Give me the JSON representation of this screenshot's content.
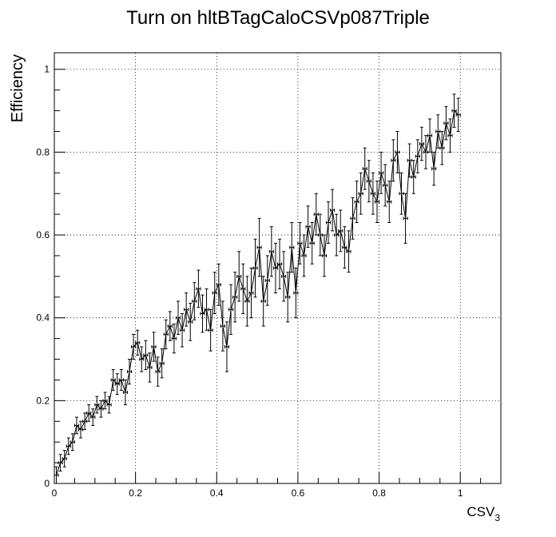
{
  "chart_data": {
    "type": "line",
    "title": "Turn on hltBTagCaloCSVp087Triple",
    "ylabel": "Efficiency",
    "xlabel_main": "CSV",
    "xlabel_sub": "3",
    "xlim": [
      0,
      1.1
    ],
    "ylim": [
      0,
      1.04
    ],
    "grid": true,
    "xticks": [
      "0",
      "0.2",
      "0.4",
      "0.6",
      "0.8",
      "1"
    ],
    "xtick_values": [
      0,
      0.2,
      0.4,
      0.6,
      0.8,
      1.0
    ],
    "yticks": [
      "0",
      "0.2",
      "0.4",
      "0.6",
      "0.8",
      "1"
    ],
    "ytick_values": [
      0,
      0.2,
      0.4,
      0.6,
      0.8,
      1.0
    ],
    "series": [
      {
        "x_bin_width": 0.01,
        "x": [
          0.005,
          0.015,
          0.025,
          0.035,
          0.045,
          0.055,
          0.065,
          0.075,
          0.085,
          0.095,
          0.105,
          0.115,
          0.125,
          0.135,
          0.145,
          0.155,
          0.165,
          0.175,
          0.185,
          0.195,
          0.205,
          0.215,
          0.225,
          0.235,
          0.245,
          0.255,
          0.265,
          0.275,
          0.285,
          0.295,
          0.305,
          0.315,
          0.325,
          0.335,
          0.345,
          0.355,
          0.365,
          0.375,
          0.385,
          0.395,
          0.405,
          0.415,
          0.425,
          0.435,
          0.445,
          0.455,
          0.465,
          0.475,
          0.485,
          0.495,
          0.505,
          0.515,
          0.525,
          0.535,
          0.545,
          0.555,
          0.565,
          0.575,
          0.585,
          0.595,
          0.605,
          0.615,
          0.625,
          0.635,
          0.645,
          0.655,
          0.665,
          0.675,
          0.685,
          0.695,
          0.705,
          0.715,
          0.725,
          0.735,
          0.745,
          0.755,
          0.765,
          0.775,
          0.785,
          0.795,
          0.805,
          0.815,
          0.825,
          0.835,
          0.845,
          0.855,
          0.865,
          0.875,
          0.885,
          0.895,
          0.905,
          0.915,
          0.925,
          0.935,
          0.945,
          0.955,
          0.965,
          0.975,
          0.985,
          0.995
        ],
        "y": [
          0.02,
          0.05,
          0.06,
          0.09,
          0.1,
          0.14,
          0.13,
          0.15,
          0.17,
          0.16,
          0.19,
          0.18,
          0.2,
          0.19,
          0.25,
          0.24,
          0.25,
          0.22,
          0.27,
          0.33,
          0.34,
          0.3,
          0.31,
          0.28,
          0.33,
          0.27,
          0.29,
          0.36,
          0.38,
          0.35,
          0.4,
          0.37,
          0.42,
          0.39,
          0.44,
          0.47,
          0.41,
          0.42,
          0.37,
          0.46,
          0.48,
          0.38,
          0.33,
          0.42,
          0.45,
          0.5,
          0.47,
          0.44,
          0.46,
          0.52,
          0.57,
          0.44,
          0.49,
          0.56,
          0.52,
          0.53,
          0.5,
          0.45,
          0.57,
          0.46,
          0.58,
          0.55,
          0.62,
          0.58,
          0.65,
          0.6,
          0.55,
          0.63,
          0.66,
          0.6,
          0.61,
          0.57,
          0.56,
          0.64,
          0.68,
          0.7,
          0.76,
          0.73,
          0.7,
          0.68,
          0.75,
          0.72,
          0.68,
          0.78,
          0.8,
          0.7,
          0.64,
          0.78,
          0.74,
          0.79,
          0.82,
          0.8,
          0.84,
          0.76,
          0.85,
          0.81,
          0.87,
          0.84,
          0.9,
          0.89
        ],
        "err": [
          0.02,
          0.02,
          0.02,
          0.02,
          0.02,
          0.02,
          0.02,
          0.02,
          0.02,
          0.02,
          0.02,
          0.02,
          0.02,
          0.02,
          0.025,
          0.025,
          0.025,
          0.03,
          0.03,
          0.03,
          0.03,
          0.03,
          0.035,
          0.035,
          0.035,
          0.035,
          0.035,
          0.035,
          0.035,
          0.035,
          0.04,
          0.04,
          0.04,
          0.045,
          0.045,
          0.045,
          0.045,
          0.05,
          0.05,
          0.05,
          0.05,
          0.06,
          0.06,
          0.06,
          0.06,
          0.06,
          0.06,
          0.06,
          0.06,
          0.07,
          0.07,
          0.06,
          0.06,
          0.06,
          0.06,
          0.06,
          0.06,
          0.06,
          0.06,
          0.06,
          0.05,
          0.05,
          0.05,
          0.05,
          0.05,
          0.05,
          0.05,
          0.05,
          0.05,
          0.05,
          0.05,
          0.05,
          0.05,
          0.05,
          0.05,
          0.05,
          0.05,
          0.05,
          0.05,
          0.05,
          0.05,
          0.05,
          0.05,
          0.05,
          0.05,
          0.05,
          0.06,
          0.04,
          0.04,
          0.04,
          0.04,
          0.04,
          0.04,
          0.04,
          0.04,
          0.04,
          0.04,
          0.04,
          0.04,
          0.04
        ]
      }
    ]
  }
}
